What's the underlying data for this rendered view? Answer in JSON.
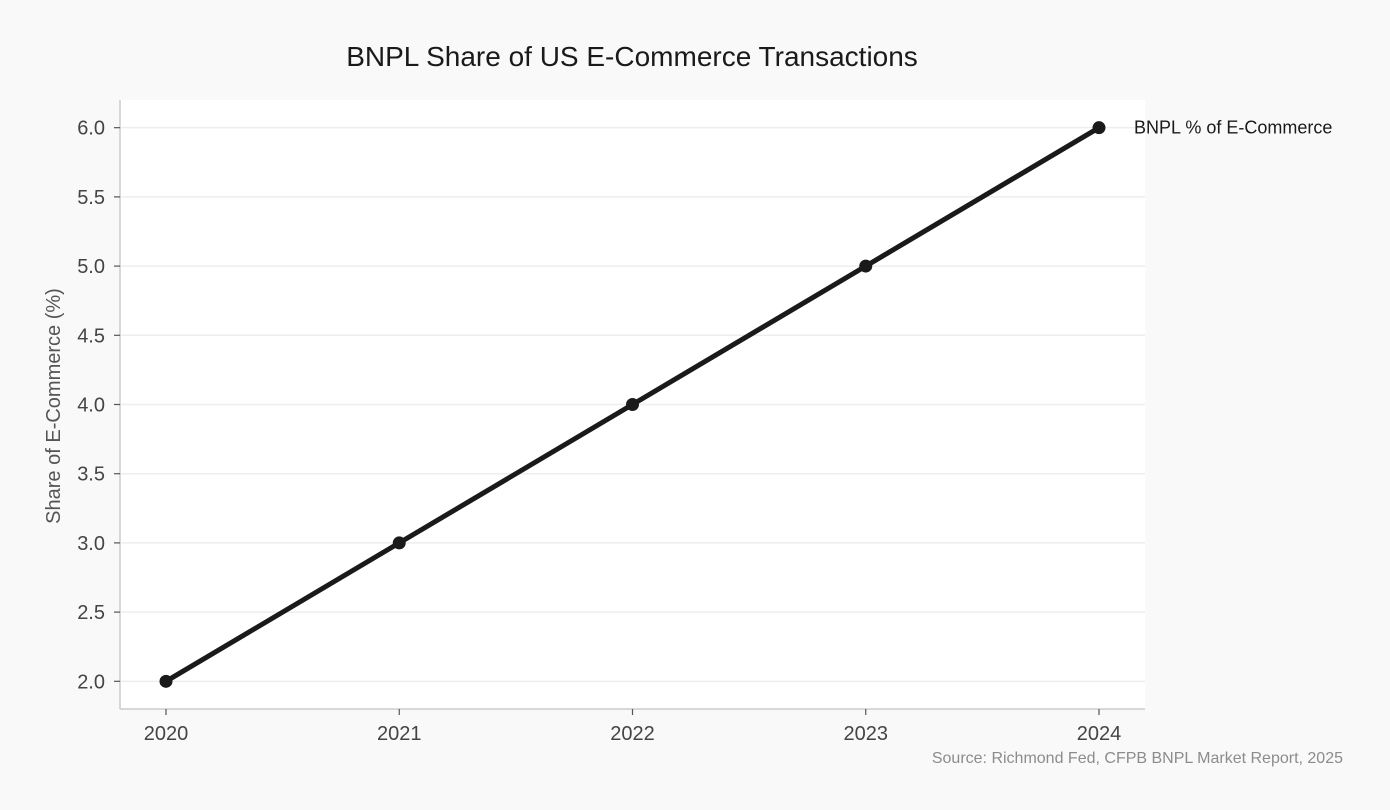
{
  "chart_data": {
    "type": "line",
    "title": "BNPL Share of US E-Commerce Transactions",
    "xlabel": "",
    "ylabel": "Share of E-Commerce (%)",
    "x": [
      "2020",
      "2021",
      "2022",
      "2023",
      "2024"
    ],
    "series": [
      {
        "name": "BNPL % of E-Commerce",
        "values": [
          2.0,
          3.0,
          4.0,
          5.0,
          6.0
        ],
        "color": "#1a1a1a"
      }
    ],
    "ylim": [
      1.8,
      6.2
    ],
    "yticks": [
      "2.0",
      "2.5",
      "3.0",
      "3.5",
      "4.0",
      "4.5",
      "5.0",
      "5.5",
      "6.0"
    ],
    "grid": "horizontal",
    "legend": "direct label at end of line",
    "source": "Source: Richmond Fed, CFPB BNPL Market Report, 2025",
    "colors": {
      "background": "#f9f9f9",
      "plot_background": "#ffffff",
      "grid": "#eeeeee",
      "axis": "#cccccc",
      "line": "#1a1a1a"
    }
  }
}
